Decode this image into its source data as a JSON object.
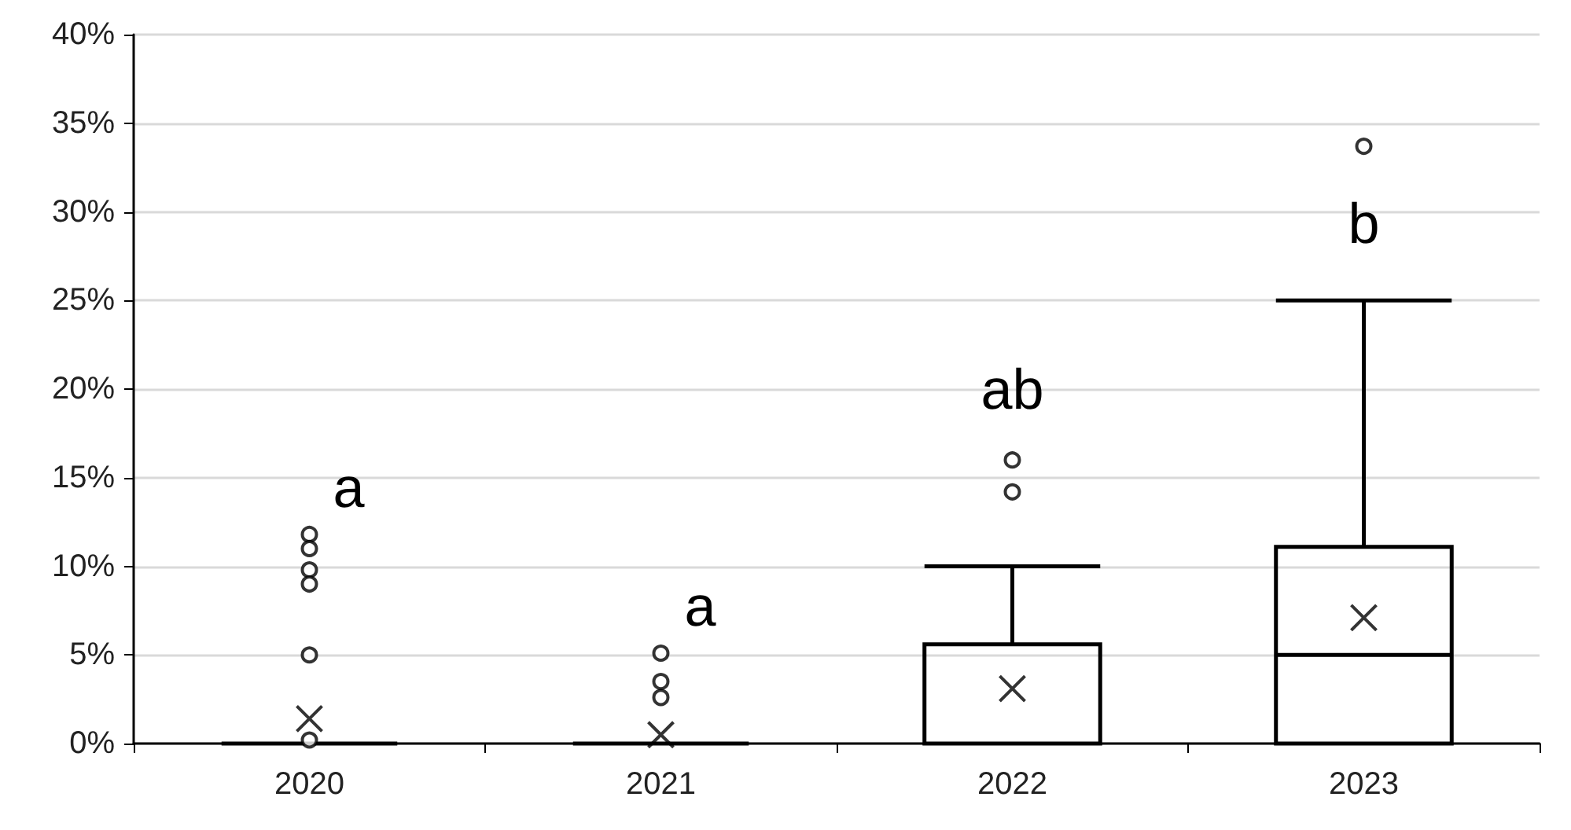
{
  "chart_data": {
    "type": "box",
    "categories": [
      "2020",
      "2021",
      "2022",
      "2023"
    ],
    "boxes": [
      {
        "low": 0,
        "q1": 0,
        "median": 0,
        "q3": 0,
        "high": 0,
        "mean": 1.4,
        "outliers": [
          11.8,
          11.0,
          9.8,
          9.0,
          5.0,
          0.2
        ]
      },
      {
        "low": 0,
        "q1": 0,
        "median": 0,
        "q3": 0,
        "high": 0,
        "mean": 0.5,
        "outliers": [
          5.1,
          3.5,
          2.6
        ]
      },
      {
        "low": 0,
        "q1": 0,
        "median": 0,
        "q3": 5.6,
        "high": 10.0,
        "mean": 3.1,
        "outliers": [
          16.0,
          14.2
        ]
      },
      {
        "low": 0,
        "q1": 0,
        "median": 5.0,
        "q3": 11.1,
        "high": 25.0,
        "mean": 7.1,
        "outliers": [
          33.7
        ]
      }
    ],
    "color": "#000000",
    "ylim": [
      0,
      40
    ],
    "yticks": [
      {
        "value": 0,
        "label": "0%"
      },
      {
        "value": 5,
        "label": "5%"
      },
      {
        "value": 10,
        "label": "10%"
      },
      {
        "value": 15,
        "label": "15%"
      },
      {
        "value": 20,
        "label": "20%"
      },
      {
        "value": 25,
        "label": "25%"
      },
      {
        "value": 30,
        "label": "30%"
      },
      {
        "value": 35,
        "label": "35%"
      },
      {
        "value": 40,
        "label": "40%"
      }
    ],
    "grid": "y",
    "annotations": [
      "a",
      "a",
      "ab",
      "b"
    ]
  }
}
